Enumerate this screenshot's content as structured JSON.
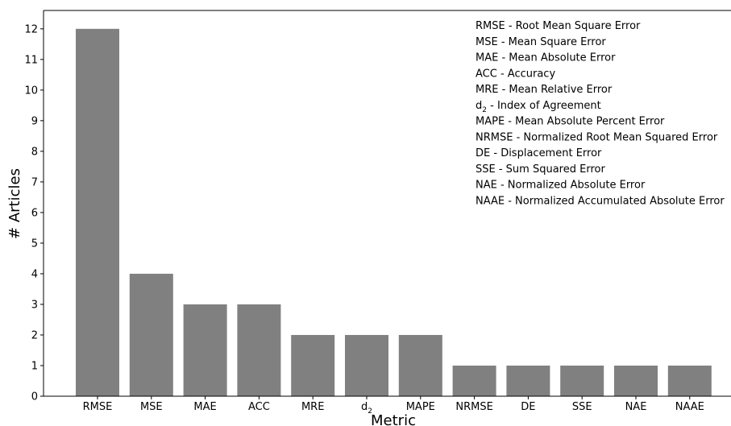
{
  "chart_data": {
    "type": "bar",
    "title": "",
    "xlabel": "Metric",
    "ylabel": "# Articles",
    "ylim": [
      0,
      12.6
    ],
    "yticks": [
      0,
      1,
      2,
      3,
      4,
      5,
      6,
      7,
      8,
      9,
      10,
      11,
      12
    ],
    "grid": false,
    "bar_color": "#808080",
    "categories": [
      {
        "label": "RMSE",
        "sub": ""
      },
      {
        "label": "MSE",
        "sub": ""
      },
      {
        "label": "MAE",
        "sub": ""
      },
      {
        "label": "ACC",
        "sub": ""
      },
      {
        "label": "MRE",
        "sub": ""
      },
      {
        "label": "d",
        "sub": "2"
      },
      {
        "label": "MAPE",
        "sub": ""
      },
      {
        "label": "NRMSE",
        "sub": ""
      },
      {
        "label": "DE",
        "sub": ""
      },
      {
        "label": "SSE",
        "sub": ""
      },
      {
        "label": "NAE",
        "sub": ""
      },
      {
        "label": "NAAE",
        "sub": ""
      }
    ],
    "values": [
      12,
      4,
      3,
      3,
      2,
      2,
      2,
      1,
      1,
      1,
      1,
      1
    ],
    "legend_placement": "top-right",
    "legend": [
      {
        "abbr": "RMSE",
        "sub": "",
        "text": " - Root Mean Square Error"
      },
      {
        "abbr": "MSE",
        "sub": "",
        "text": " - Mean Square Error"
      },
      {
        "abbr": "MAE",
        "sub": "",
        "text": " - Mean Absolute Error"
      },
      {
        "abbr": "ACC",
        "sub": "",
        "text": " - Accuracy"
      },
      {
        "abbr": "MRE",
        "sub": "",
        "text": " - Mean Relative Error"
      },
      {
        "abbr": "d",
        "sub": "2",
        "text": " - Index of Agreement"
      },
      {
        "abbr": "MAPE",
        "sub": "",
        "text": " - Mean Absolute Percent Error"
      },
      {
        "abbr": "NRMSE",
        "sub": "",
        "text": " - Normalized Root Mean Squared Error"
      },
      {
        "abbr": "DE",
        "sub": "",
        "text": " - Displacement Error"
      },
      {
        "abbr": "SSE",
        "sub": "",
        "text": " - Sum Squared Error"
      },
      {
        "abbr": "NAE",
        "sub": "",
        "text": " - Normalized Absolute Error"
      },
      {
        "abbr": "NAAE",
        "sub": "",
        "text": " - Normalized Accumulated Absolute Error"
      }
    ]
  }
}
